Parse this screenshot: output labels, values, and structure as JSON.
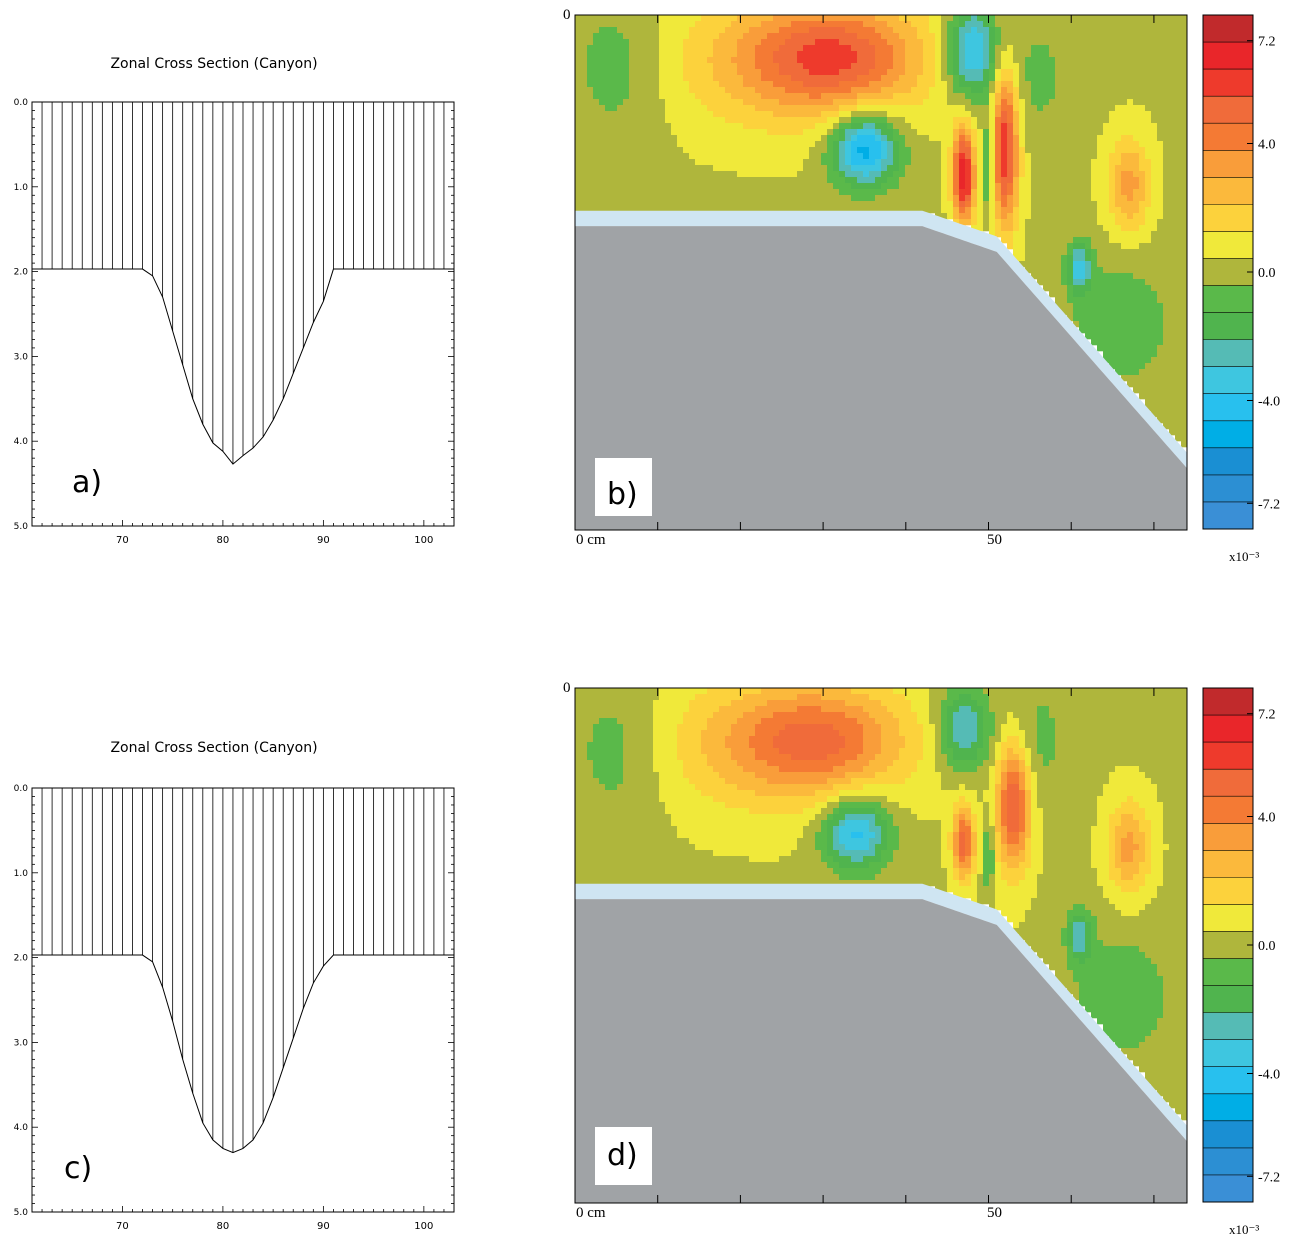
{
  "section_plots": [
    {
      "panel_label": "a)",
      "title": "Zonal Cross Section (Canyon)",
      "chart_data": {
        "type": "area",
        "title": "Zonal Cross Section (Canyon)",
        "x_ticks": [
          "70",
          "80",
          "90",
          "100"
        ],
        "y_ticks": [
          "0.0",
          "1.0",
          "2.0",
          "3.0",
          "4.0",
          "5.0"
        ],
        "xlim": [
          61,
          103
        ],
        "ylim": [
          5.0,
          0.0
        ],
        "profile_x": [
          61,
          72,
          73,
          74,
          75,
          76,
          77,
          78,
          79,
          80,
          81,
          82,
          83,
          84,
          85,
          86,
          87,
          88,
          89,
          90,
          91,
          103
        ],
        "profile_depth": [
          1.97,
          1.97,
          2.05,
          2.3,
          2.7,
          3.1,
          3.5,
          3.8,
          4.02,
          4.12,
          4.27,
          4.17,
          4.08,
          3.95,
          3.75,
          3.5,
          3.2,
          2.9,
          2.6,
          2.35,
          1.97,
          1.97
        ],
        "hatch_x_start": 62,
        "hatch_x_end": 102,
        "hatch_step": 1
      }
    },
    {
      "panel_label": "c)",
      "title": "Zonal Cross Section (Canyon)",
      "chart_data": {
        "type": "area",
        "title": "Zonal Cross Section (Canyon)",
        "x_ticks": [
          "70",
          "80",
          "90",
          "100"
        ],
        "y_ticks": [
          "0.0",
          "1.0",
          "2.0",
          "3.0",
          "4.0",
          "5.0"
        ],
        "xlim": [
          61,
          103
        ],
        "ylim": [
          5.0,
          0.0
        ],
        "profile_x": [
          61,
          72,
          73,
          74,
          75,
          76,
          77,
          78,
          79,
          80,
          81,
          82,
          83,
          84,
          85,
          86,
          87,
          88,
          89,
          90,
          91,
          103
        ],
        "profile_depth": [
          1.97,
          1.97,
          2.05,
          2.35,
          2.75,
          3.2,
          3.6,
          3.95,
          4.15,
          4.25,
          4.3,
          4.25,
          4.15,
          3.95,
          3.65,
          3.3,
          2.95,
          2.6,
          2.3,
          2.1,
          1.97,
          1.97
        ],
        "hatch_x_start": 62,
        "hatch_x_end": 102,
        "hatch_step": 1
      }
    }
  ],
  "contour_plots": [
    {
      "panel_label": "b)",
      "x_label_start": "0 cm",
      "x_label_mid": "50",
      "y_label_top": "0",
      "colorbar": {
        "tick_labels": [
          "7.2",
          "4.0",
          "0.0",
          "-4.0",
          "-7.2"
        ],
        "tick_values": [
          7.2,
          4.0,
          0.0,
          -4.0,
          -7.2
        ],
        "scale_label": "x10⁻³"
      },
      "chart_data": {
        "type": "heatmap",
        "x_range_cm": [
          0,
          74
        ],
        "ticks_cm": [
          10,
          20,
          30,
          40,
          50,
          60,
          70
        ],
        "value_range": [
          -8.0,
          8.0
        ],
        "shelf_depth_fraction": 0.38,
        "blobs": [
          {
            "x": 32,
            "y": 0.08,
            "value": 3.5,
            "rx": 10,
            "ry": 0.1
          },
          {
            "x": 26,
            "y": 0.09,
            "value": 2.5,
            "rx": 14,
            "ry": 0.13
          },
          {
            "x": 48,
            "y": 0.07,
            "value": -4.5,
            "rx": 3,
            "ry": 0.09
          },
          {
            "x": 35,
            "y": 0.26,
            "value": -5.5,
            "rx": 4,
            "ry": 0.07
          },
          {
            "x": 47,
            "y": 0.31,
            "value": 7.0,
            "rx": 1.3,
            "ry": 0.09
          },
          {
            "x": 52,
            "y": 0.26,
            "value": 6.0,
            "rx": 1.6,
            "ry": 0.15
          },
          {
            "x": 50,
            "y": 0.29,
            "value": -2.5,
            "rx": 0.7,
            "ry": 0.1
          },
          {
            "x": 67,
            "y": 0.33,
            "value": 3.0,
            "rx": 2.5,
            "ry": 0.09
          },
          {
            "x": 61,
            "y": 0.49,
            "value": -3.5,
            "rx": 1.5,
            "ry": 0.05
          },
          {
            "x": 5,
            "y": 0.1,
            "value": -1.2,
            "rx": 6,
            "ry": 0.15
          },
          {
            "x": 56,
            "y": 0.12,
            "value": -1.0,
            "rx": 4,
            "ry": 0.12
          },
          {
            "x": 66,
            "y": 0.6,
            "value": -1.5,
            "rx": 6,
            "ry": 0.12
          }
        ]
      }
    },
    {
      "panel_label": "d)",
      "x_label_start": "0 cm",
      "x_label_mid": "50",
      "y_label_top": "0",
      "colorbar": {
        "tick_labels": [
          "7.2",
          "4.0",
          "0.0",
          "-4.0",
          "-7.2"
        ],
        "tick_values": [
          7.2,
          4.0,
          0.0,
          -4.0,
          -7.2
        ],
        "scale_label": "x10⁻³"
      },
      "chart_data": {
        "type": "heatmap",
        "x_range_cm": [
          0,
          74
        ],
        "ticks_cm": [
          10,
          20,
          30,
          40,
          50,
          60,
          70
        ],
        "value_range": [
          -8.0,
          8.0
        ],
        "shelf_depth_fraction": 0.38,
        "blobs": [
          {
            "x": 30,
            "y": 0.1,
            "value": 3.0,
            "rx": 10,
            "ry": 0.1
          },
          {
            "x": 24,
            "y": 0.11,
            "value": 2.2,
            "rx": 14,
            "ry": 0.13
          },
          {
            "x": 47,
            "y": 0.08,
            "value": -3.5,
            "rx": 3,
            "ry": 0.08
          },
          {
            "x": 34,
            "y": 0.28,
            "value": -4.5,
            "rx": 4,
            "ry": 0.07
          },
          {
            "x": 47,
            "y": 0.3,
            "value": 5.0,
            "rx": 1.3,
            "ry": 0.07
          },
          {
            "x": 53,
            "y": 0.23,
            "value": 5.5,
            "rx": 2,
            "ry": 0.12
          },
          {
            "x": 50,
            "y": 0.32,
            "value": -2.0,
            "rx": 0.7,
            "ry": 0.07
          },
          {
            "x": 67,
            "y": 0.31,
            "value": 3.0,
            "rx": 2.5,
            "ry": 0.09
          },
          {
            "x": 61,
            "y": 0.48,
            "value": -3.0,
            "rx": 1.5,
            "ry": 0.05
          },
          {
            "x": 5,
            "y": 0.12,
            "value": -1.2,
            "rx": 6,
            "ry": 0.15
          },
          {
            "x": 56,
            "y": 0.1,
            "value": -1.0,
            "rx": 4,
            "ry": 0.12
          },
          {
            "x": 66,
            "y": 0.6,
            "value": -1.5,
            "rx": 6,
            "ry": 0.12
          }
        ]
      }
    }
  ],
  "palette": {
    "colors": [
      "#3a8fd6",
      "#2c8fd3",
      "#1a8fd3",
      "#00aee6",
      "#28c0ee",
      "#3ec6e0",
      "#55bbb5",
      "#50b44e",
      "#5ab94a",
      "#afb63c",
      "#f0e93a",
      "#fcd23c",
      "#fbb93c",
      "#f99d3a",
      "#f47a34",
      "#f06b3a",
      "#ee3a2c",
      "#e9262a",
      "#c12a2c"
    ],
    "land": "#a0a3a6",
    "shelf_band": "#cfe5f2",
    "line": "#000000"
  }
}
